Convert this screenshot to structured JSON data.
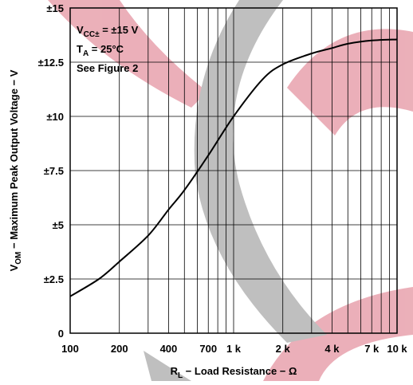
{
  "chart_data": {
    "type": "line",
    "log_x": true,
    "grid": true,
    "color": "#000000",
    "annotations": [
      {
        "main": "V",
        "sub": "CC±",
        "rest": " = ±15 V"
      },
      {
        "main": "T",
        "sub": "A",
        "rest": " = 25°C"
      },
      {
        "main": "See Figure 2"
      }
    ],
    "xlabel": {
      "main": "R",
      "sub": "L",
      "rest": " − Load Resistance − Ω"
    },
    "ylabel": {
      "main": "V",
      "sub": "OM",
      "rest": " − Maximum Peak Output Voltage − V"
    },
    "xlim": [
      100,
      10000
    ],
    "xticks": [
      100,
      {
        "value": 200,
        "label": "200"
      },
      {
        "value": 400,
        "label": "400"
      },
      {
        "value": 700,
        "label": "700"
      },
      {
        "value": 1000,
        "label": "1 k"
      },
      {
        "value": 2000,
        "label": "2 k"
      },
      {
        "value": 4000,
        "label": "4 k"
      },
      {
        "value": 7000,
        "label": "7 k"
      },
      {
        "value": 10000,
        "label": "10 k"
      }
    ],
    "xgrid": [
      100,
      200,
      300,
      400,
      500,
      600,
      700,
      800,
      900,
      1000,
      2000,
      3000,
      4000,
      5000,
      6000,
      7000,
      8000,
      9000,
      10000
    ],
    "ylim": [
      0,
      15
    ],
    "yticks": [
      0,
      {
        "value": 2.5,
        "label": "±2.5"
      },
      {
        "value": 5,
        "label": "±5"
      },
      {
        "value": 7.5,
        "label": "±7.5"
      },
      {
        "value": 10,
        "label": "±10"
      },
      {
        "value": 12.5,
        "label": "±12.5"
      },
      {
        "value": 15,
        "label": "±15"
      }
    ],
    "x": [
      100,
      150,
      200,
      300,
      400,
      500,
      700,
      1000,
      1500,
      2000,
      3000,
      4000,
      5000,
      7000,
      10000
    ],
    "values": [
      1.7,
      2.5,
      3.3,
      4.5,
      5.7,
      6.6,
      8.2,
      10.0,
      11.7,
      12.4,
      12.9,
      13.15,
      13.35,
      13.5,
      13.55
    ]
  }
}
